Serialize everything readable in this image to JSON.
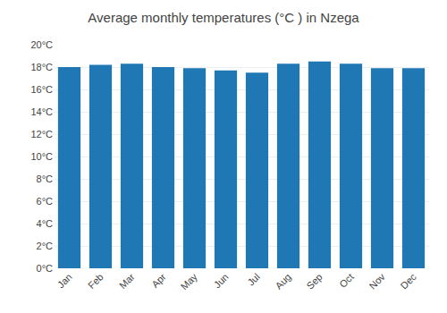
{
  "chart_data": {
    "type": "bar",
    "title": "Average monthly temperatures (°C ) in Nzega",
    "categories": [
      "Jan",
      "Feb",
      "Mar",
      "Apr",
      "May",
      "Jun",
      "Jul",
      "Aug",
      "Sep",
      "Oct",
      "Nov",
      "Dec"
    ],
    "values": [
      18.0,
      18.2,
      18.3,
      18.0,
      17.9,
      17.7,
      17.5,
      18.3,
      18.5,
      18.3,
      17.9,
      17.9
    ],
    "ylim": [
      0,
      20
    ],
    "yticks": [
      {
        "value": 0,
        "label": "0°C"
      },
      {
        "value": 2,
        "label": "2°C"
      },
      {
        "value": 4,
        "label": "4°C"
      },
      {
        "value": 6,
        "label": "6°C"
      },
      {
        "value": 8,
        "label": "8°C"
      },
      {
        "value": 10,
        "label": "10°C"
      },
      {
        "value": 12,
        "label": "12°C"
      },
      {
        "value": 14,
        "label": "14°C"
      },
      {
        "value": 16,
        "label": "16°C"
      },
      {
        "value": 18,
        "label": "18°C"
      },
      {
        "value": 20,
        "label": "20°C"
      }
    ],
    "grid": true
  }
}
